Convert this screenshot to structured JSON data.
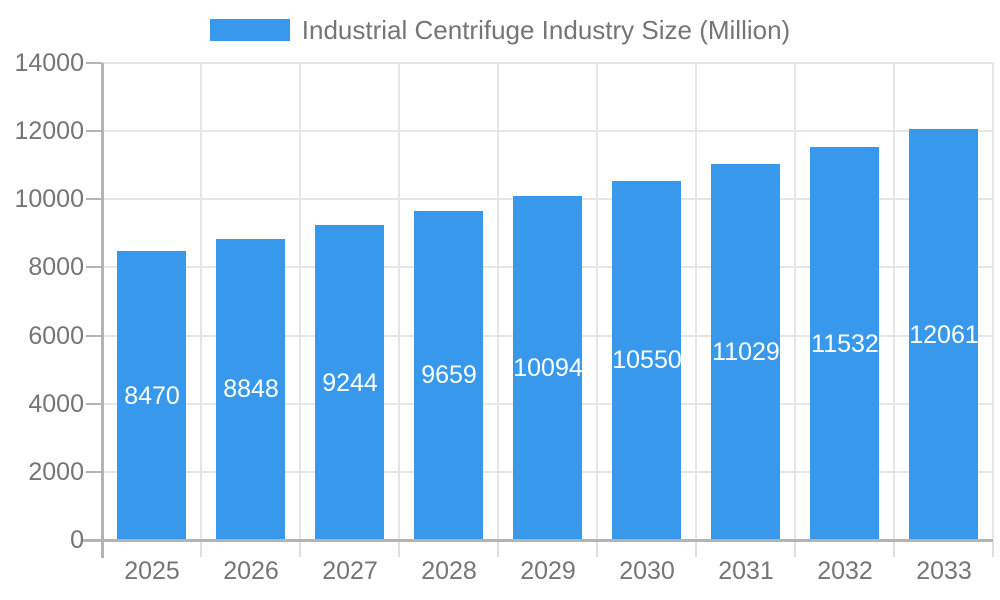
{
  "legend": {
    "label": "Industrial Centrifuge Industry Size (Million)",
    "swatch_color": "#3899ec"
  },
  "chart_data": {
    "type": "bar",
    "title": "Industrial Centrifuge Industry Size (Million)",
    "categories": [
      "2025",
      "2026",
      "2027",
      "2028",
      "2029",
      "2030",
      "2031",
      "2032",
      "2033"
    ],
    "series": [
      {
        "name": "Industrial Centrifuge Industry Size (Million)",
        "values": [
          8470,
          8848,
          9244,
          9659,
          10094,
          10550,
          11029,
          11532,
          12061
        ]
      }
    ],
    "value_labels": [
      "8470",
      "8848",
      "9244",
      "9659",
      "10094",
      "10550",
      "11029",
      "11532",
      "12061"
    ],
    "xlabel": "",
    "ylabel": "",
    "ylim": [
      0,
      14000
    ],
    "yticks": [
      0,
      2000,
      4000,
      6000,
      8000,
      10000,
      12000,
      14000
    ],
    "ytick_labels": [
      "0",
      "2000",
      "4000",
      "6000",
      "8000",
      "10000",
      "12000",
      "14000"
    ],
    "grid": true,
    "legend_position": "top-center",
    "colors": {
      "bar": "#3899ec",
      "value_label": "#ffffff",
      "grid": "#e6e6e6",
      "axis_line": "#b3b3b3",
      "minor_tick": "#e0e0e0",
      "axis_text": "#757575",
      "background": "#ffffff"
    }
  }
}
